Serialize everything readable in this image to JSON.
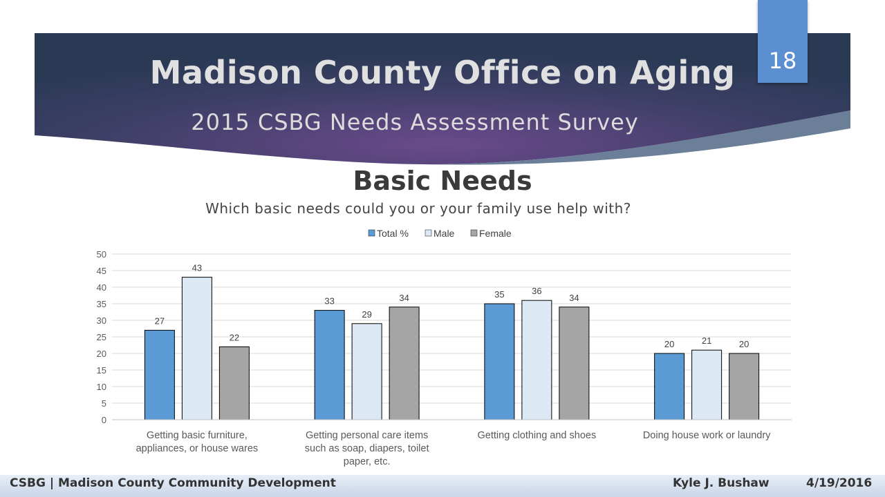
{
  "slide": {
    "title": "Madison County Office on Aging",
    "subtitle": "2015 CSBG Needs Assessment Survey",
    "page_number": "18",
    "heading": "Basic Needs",
    "question": "Which basic needs could you or your family use help with?"
  },
  "footer": {
    "left": "CSBG | Madison County Community Development",
    "author": "Kyle J. Bushaw",
    "date": "4/19/2016"
  },
  "colors": {
    "banner_dark": "#2a3a55",
    "banner_purple": "#6a4a8c",
    "total": "#5b9bd5",
    "male": "#dde8f5",
    "female": "#a5a5a5"
  },
  "chart_data": {
    "type": "bar",
    "categories": [
      [
        "Getting basic furniture,",
        "appliances, or house wares"
      ],
      [
        "Getting personal care items",
        "such as soap, diapers, toilet",
        "paper, etc."
      ],
      [
        "Getting clothing and shoes"
      ],
      [
        "Doing house work or laundry"
      ]
    ],
    "series": [
      {
        "name": "Total %",
        "values": [
          27,
          33,
          35,
          20
        ]
      },
      {
        "name": "Male",
        "values": [
          43,
          29,
          36,
          21
        ]
      },
      {
        "name": "Female",
        "values": [
          22,
          34,
          34,
          20
        ]
      }
    ],
    "ylim": [
      0,
      50
    ],
    "yticks": [
      0,
      5,
      10,
      15,
      20,
      25,
      30,
      35,
      40,
      45,
      50
    ],
    "grid": true,
    "legend": "top-center",
    "data_labels": true
  }
}
